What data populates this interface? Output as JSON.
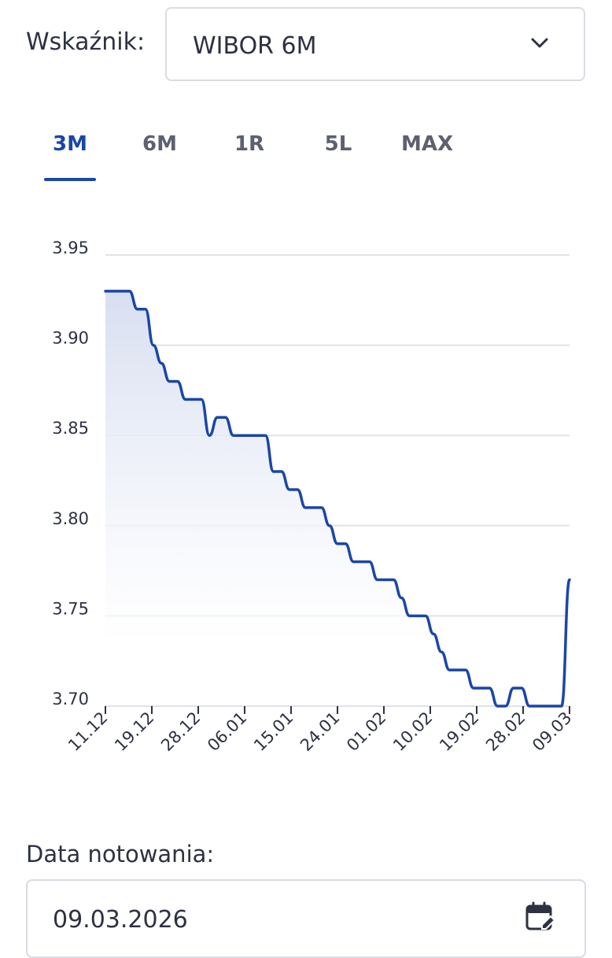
{
  "indicator": {
    "label": "Wskaźnik:",
    "selected": "WIBOR 6M",
    "chevron_icon": "chevron-down-icon"
  },
  "tabs": [
    {
      "label": "3M",
      "active": true
    },
    {
      "label": "6M",
      "active": false
    },
    {
      "label": "1R",
      "active": false
    },
    {
      "label": "5L",
      "active": false
    },
    {
      "label": "MAX",
      "active": false
    }
  ],
  "chart_data": {
    "type": "area",
    "title": "",
    "xlabel": "",
    "ylabel": "",
    "ylim": [
      3.7,
      3.95
    ],
    "y_ticks": [
      "3.95",
      "3.90",
      "3.85",
      "3.80",
      "3.75",
      "3.70"
    ],
    "x_ticks": [
      "11.12",
      "19.12",
      "28.12",
      "06.01",
      "15.01",
      "24.01",
      "01.02",
      "10.02",
      "19.02",
      "28.02",
      "09.03"
    ],
    "grid": true,
    "colors": {
      "line": "#1a46a8",
      "fill": "#dfe5f3",
      "grid": "#e1e3e8"
    },
    "series": [
      {
        "x": [
          "11.12",
          "12.12",
          "15.12",
          "16.12",
          "17.12",
          "18.12",
          "19.12",
          "22.12",
          "23.12",
          "24.12",
          "29.12",
          "30.12",
          "31.12",
          "02.01",
          "05.01",
          "07.01",
          "08.01",
          "09.01",
          "12.01",
          "13.01",
          "14.01",
          "15.01",
          "16.01",
          "19.01",
          "20.01",
          "21.01",
          "22.01",
          "23.01",
          "26.01",
          "27.01",
          "28.01",
          "29.01",
          "30.01",
          "02.02",
          "03.02",
          "04.02",
          "05.02",
          "06.02",
          "09.02",
          "10.02",
          "11.02",
          "12.02",
          "13.02",
          "16.02",
          "17.02",
          "18.02",
          "19.02",
          "20.02",
          "23.02",
          "24.02",
          "25.02",
          "26.02",
          "27.02",
          "02.03",
          "03.03",
          "04.03",
          "05.03",
          "06.03",
          "09.03"
        ],
        "y": [
          3.93,
          3.93,
          3.93,
          3.93,
          3.92,
          3.92,
          3.9,
          3.89,
          3.88,
          3.88,
          3.87,
          3.87,
          3.87,
          3.85,
          3.86,
          3.86,
          3.85,
          3.85,
          3.85,
          3.85,
          3.85,
          3.83,
          3.83,
          3.82,
          3.82,
          3.81,
          3.81,
          3.81,
          3.8,
          3.79,
          3.79,
          3.78,
          3.78,
          3.78,
          3.77,
          3.77,
          3.77,
          3.76,
          3.75,
          3.75,
          3.75,
          3.74,
          3.73,
          3.72,
          3.72,
          3.72,
          3.71,
          3.71,
          3.71,
          3.7,
          3.7,
          3.71,
          3.71,
          3.7,
          3.7,
          3.7,
          3.7,
          3.7,
          3.77
        ]
      }
    ]
  },
  "date": {
    "label": "Data notowania:",
    "value": "09.03.2026",
    "calendar_icon": "calendar-edit-icon"
  }
}
